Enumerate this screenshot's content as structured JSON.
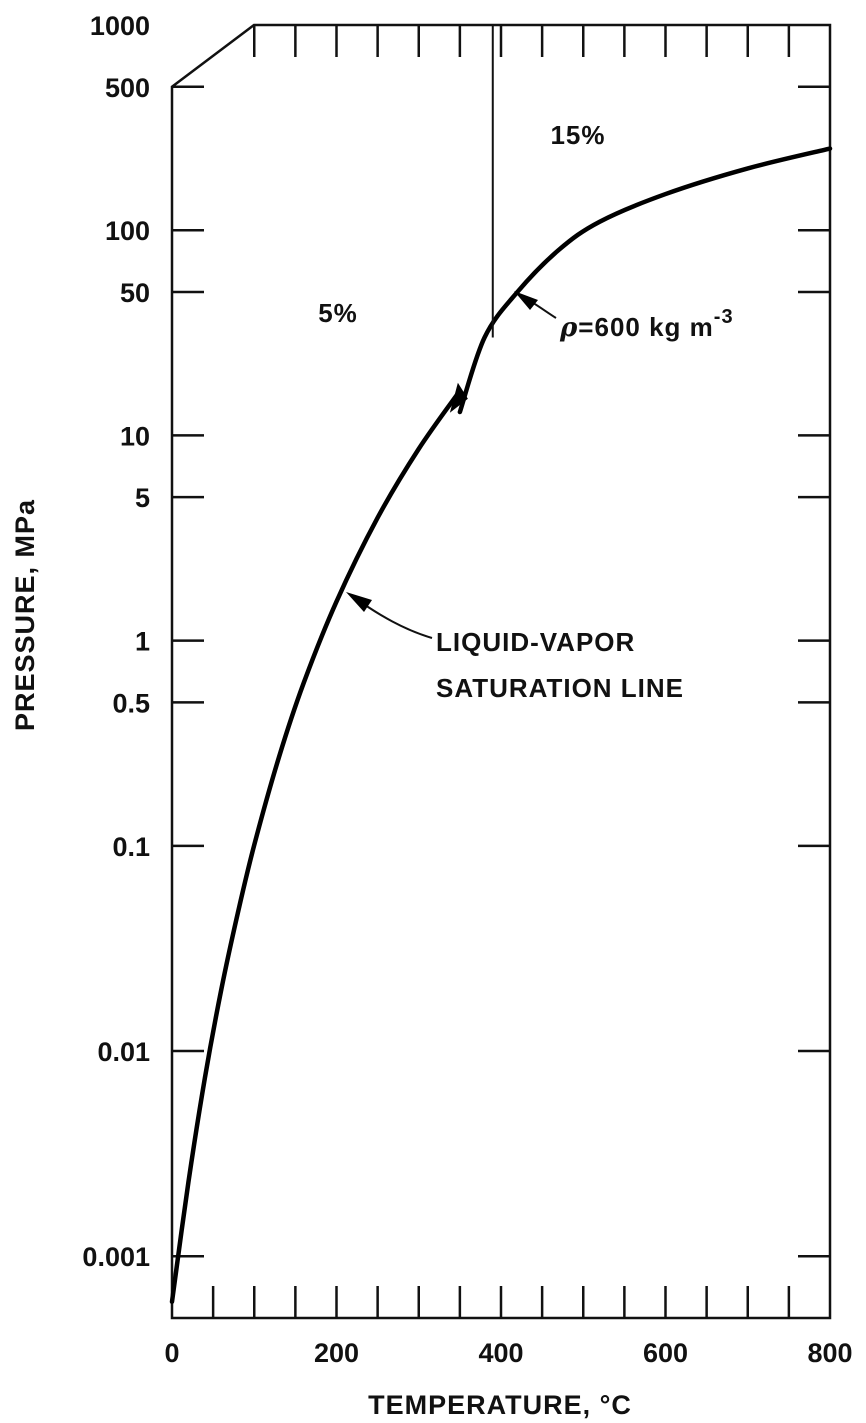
{
  "chart_data": {
    "type": "line",
    "xlabel": "TEMPERATURE, °C",
    "ylabel": "PRESSURE, MPa",
    "x_scale": "linear",
    "y_scale": "log",
    "xlim": [
      0,
      800
    ],
    "ylim": [
      0.0005,
      1000
    ],
    "x_ticks": [
      0,
      200,
      400,
      600,
      800
    ],
    "x_tick_labels": [
      "0",
      "200",
      "400",
      "600",
      "800"
    ],
    "y_ticks": [
      0.001,
      0.01,
      0.1,
      0.5,
      1,
      5,
      10,
      50,
      100,
      500,
      1000
    ],
    "y_tick_labels": [
      "0.001",
      "0.01",
      "0.1",
      "0.5",
      "1",
      "5",
      "10",
      "50",
      "100",
      "500",
      "1000"
    ],
    "grid": false,
    "series": [
      {
        "name": "LIQUID-VAPOR SATURATION LINE",
        "x": [
          0,
          20,
          40,
          60,
          80,
          100,
          130,
          160,
          200,
          250,
          300,
          350
        ],
        "y": [
          0.0006,
          0.0023,
          0.0074,
          0.02,
          0.047,
          0.101,
          0.27,
          0.62,
          1.55,
          3.97,
          8.6,
          16.5
        ]
      },
      {
        "name": "ρ=600 kg m⁻³",
        "x": [
          350,
          380,
          420,
          470,
          520,
          600,
          700,
          800
        ],
        "y": [
          13,
          30,
          50,
          80,
          110,
          150,
          200,
          250
        ]
      }
    ],
    "boundary_line": {
      "x": 390,
      "y_from": 30,
      "y_to": 1000
    },
    "region_labels": [
      "5%",
      "15%"
    ],
    "annotations": [
      "ρ=600 kg m⁻³",
      "LIQUID-VAPOR",
      "SATURATION LINE"
    ]
  }
}
